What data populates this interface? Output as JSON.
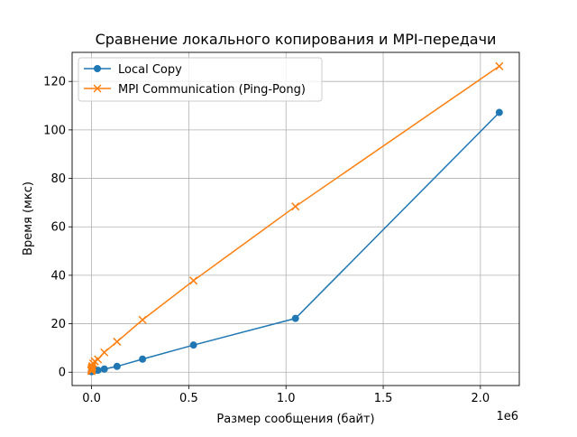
{
  "chart_data": {
    "type": "line",
    "title": "Сравнение локального копирования и MPI-передачи",
    "xlabel": "Размер сообщения (байт)",
    "ylabel": "Время (мкс)",
    "x_offset_label": "1e6",
    "xlim": [
      -100000,
      2200000
    ],
    "ylim": [
      -5.5,
      132
    ],
    "xticks": [
      0,
      500000,
      1000000,
      1500000,
      2000000
    ],
    "xtick_labels": [
      "0.0",
      "0.5",
      "1.0",
      "1.5",
      "2.0"
    ],
    "yticks": [
      0,
      20,
      40,
      60,
      80,
      100,
      120
    ],
    "ytick_labels": [
      "0",
      "20",
      "40",
      "60",
      "80",
      "100",
      "120"
    ],
    "grid": true,
    "legend_position": "top-left",
    "series": [
      {
        "name": "Local Copy",
        "color": "#1f77b4",
        "marker": "circle",
        "points": [
          [
            1,
            0.3
          ],
          [
            2,
            0.3
          ],
          [
            4,
            0.3
          ],
          [
            8,
            0.3
          ],
          [
            16,
            0.3
          ],
          [
            32,
            0.3
          ],
          [
            64,
            0.3
          ],
          [
            128,
            0.3
          ],
          [
            256,
            0.3
          ],
          [
            512,
            0.3
          ],
          [
            1024,
            0.4
          ],
          [
            2048,
            0.4
          ],
          [
            4096,
            0.5
          ],
          [
            8192,
            0.5
          ],
          [
            16384,
            0.8
          ],
          [
            32768,
            0.8
          ],
          [
            65536,
            1.3
          ],
          [
            131072,
            2.4
          ],
          [
            262144,
            5.4
          ],
          [
            524288,
            11.2
          ],
          [
            1048576,
            22.2
          ],
          [
            2097152,
            107.2
          ]
        ]
      },
      {
        "name": "MPI Communication (Ping-Pong)",
        "color": "#ff7f0e",
        "marker": "x",
        "points": [
          [
            1,
            0.5
          ],
          [
            2,
            0.5
          ],
          [
            4,
            0.5
          ],
          [
            8,
            0.6
          ],
          [
            16,
            0.6
          ],
          [
            32,
            0.7
          ],
          [
            64,
            0.8
          ],
          [
            128,
            0.9
          ],
          [
            256,
            1.0
          ],
          [
            512,
            1.2
          ],
          [
            1024,
            1.5
          ],
          [
            2048,
            2.0
          ],
          [
            4096,
            2.5
          ],
          [
            8192,
            3.6
          ],
          [
            16384,
            4.5
          ],
          [
            32768,
            5.3
          ],
          [
            65536,
            8.2
          ],
          [
            131072,
            12.6
          ],
          [
            262144,
            21.6
          ],
          [
            524288,
            37.8
          ],
          [
            1048576,
            68.4
          ],
          [
            2097152,
            126.3
          ]
        ]
      }
    ]
  }
}
